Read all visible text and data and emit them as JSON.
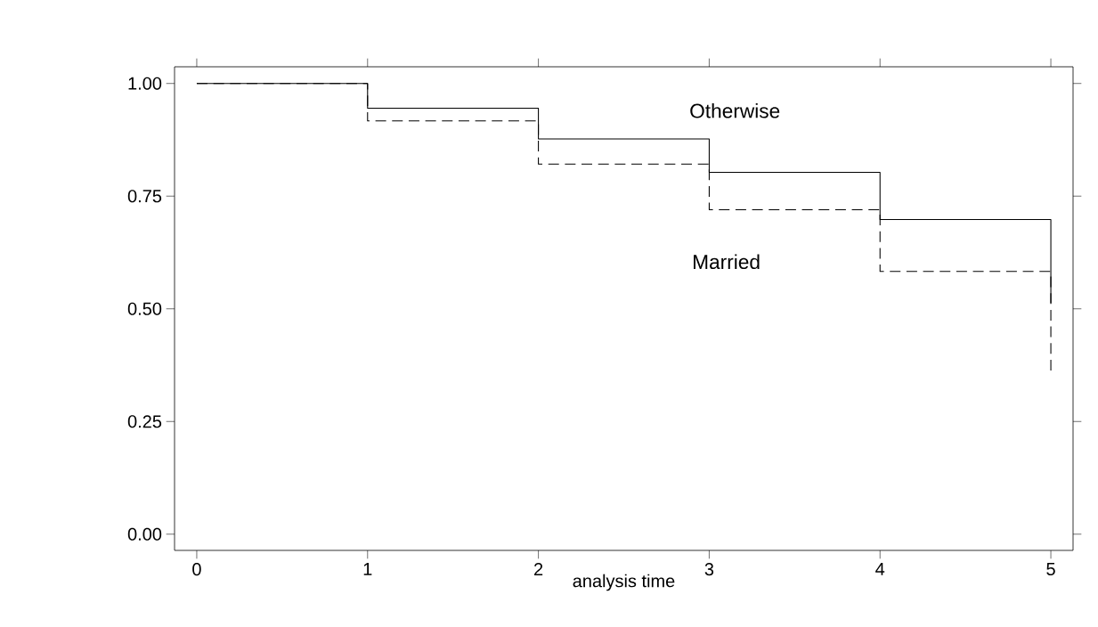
{
  "chart_data": {
    "type": "step",
    "xlabel": "analysis time",
    "x": [
      0,
      1,
      2,
      3,
      4,
      5
    ],
    "series": [
      {
        "name": "Otherwise",
        "color": "#000000",
        "line_style": "solid",
        "values": [
          1.0,
          0.945,
          0.877,
          0.803,
          0.698,
          0.513
        ]
      },
      {
        "name": "Married",
        "color": "#000000",
        "line_style": "dashed",
        "values": [
          1.0,
          0.917,
          0.821,
          0.72,
          0.583,
          0.362
        ]
      }
    ],
    "xlim": [
      -0.13,
      5.13
    ],
    "ylim": [
      -0.036,
      1.037
    ],
    "xticks": [
      0,
      1,
      2,
      3,
      4,
      5
    ],
    "yticks": [
      {
        "value": 0,
        "label": "0.00"
      },
      {
        "value": 0.25,
        "label": "0.25"
      },
      {
        "value": 0.5,
        "label": "0.50"
      },
      {
        "value": 0.75,
        "label": "0.75"
      },
      {
        "value": 1,
        "label": "1.00"
      }
    ]
  }
}
